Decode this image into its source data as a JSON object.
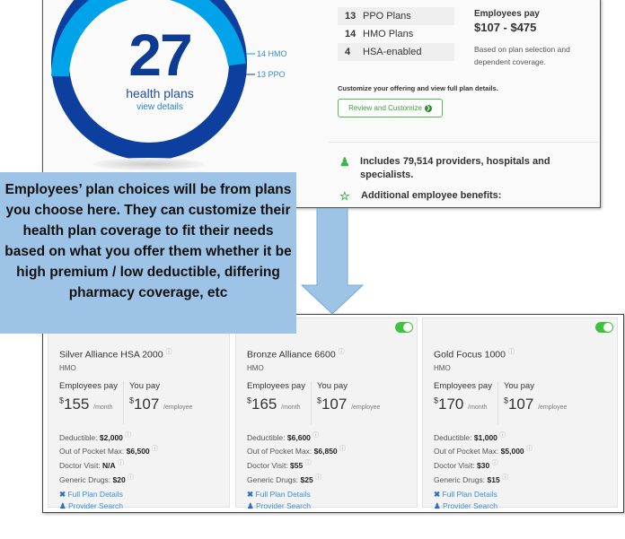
{
  "summary": {
    "total": "27",
    "total_label": "health plans",
    "view_details": "view details",
    "chart": {
      "hmo": 14,
      "ppo": 13,
      "hmo_label": "14 HMO",
      "ppo_label": "13 PPO",
      "hmo_color": "#00a3ea",
      "ppo_color": "#0d3f9e"
    },
    "plan_types": [
      {
        "count": "13",
        "label": "PPO Plans"
      },
      {
        "count": "14",
        "label": "HMO Plans"
      },
      {
        "count": "4",
        "label": "HSA-enabled"
      }
    ],
    "employees_pay_label": "Employees pay",
    "employees_pay_range": "$107 - $475",
    "basis_note": "Based on plan selection and dependent coverage.",
    "customize_text": "Customize your offering and view full plan details.",
    "review_button": "Review and Customize",
    "providers": "Includes 79,514 providers, hospitals and specialists.",
    "benefits": "Additional employee benefits:"
  },
  "callout": "Employees’ plan choices will be from plans you choose here. They can customize their health plan coverage to fit their needs based on what you offer them whether it be high premium / low deductible, differing pharmacy coverage, etc",
  "labels": {
    "employees_pay": "Employees pay",
    "you_pay": "You pay",
    "per_month": "/month",
    "per_employee": "/employee",
    "deductible": "Deductible:",
    "oop": "Out of Pocket Max:",
    "doctor": "Doctor Visit:",
    "generic": "Generic Drugs:",
    "full_details": "Full Plan Details",
    "provider_search": "Provider Search"
  },
  "plans": [
    {
      "name": "Silver Alliance HSA 2000",
      "type": "HMO",
      "employee_pay": "155",
      "you_pay": "107",
      "deductible": "$2,000",
      "oop": "$6,500",
      "doctor": "N/A",
      "generic": "$20",
      "selected": false
    },
    {
      "name": "Bronze Alliance 6600",
      "type": "HMO",
      "employee_pay": "165",
      "you_pay": "107",
      "deductible": "$6,600",
      "oop": "$6,850",
      "doctor": "$55",
      "generic": "$25",
      "selected": true
    },
    {
      "name": "Gold Focus 1000",
      "type": "HMO",
      "employee_pay": "170",
      "you_pay": "107",
      "deductible": "$1,000",
      "oop": "$5,000",
      "doctor": "$30",
      "generic": "$15",
      "selected": true
    }
  ]
}
